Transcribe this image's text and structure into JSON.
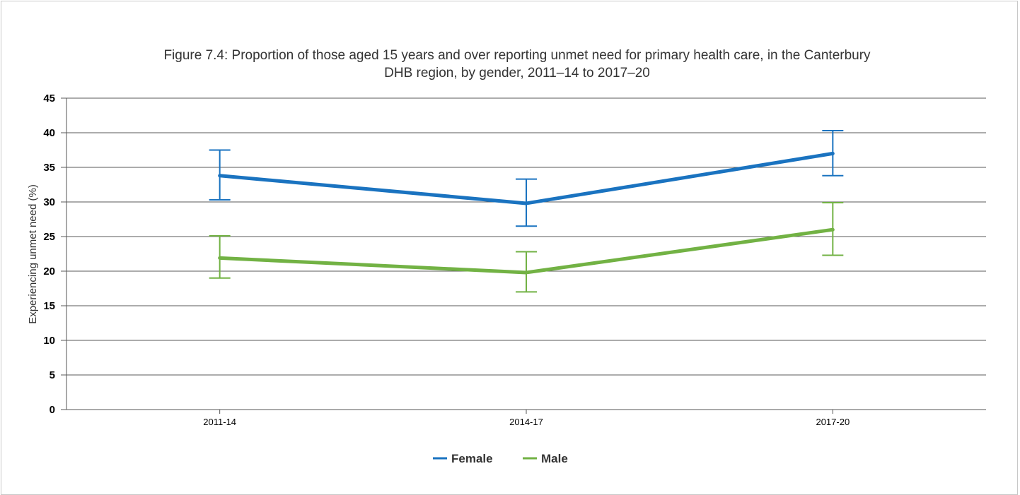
{
  "chart_data": {
    "type": "line",
    "title_lines": [
      "Figure 7.4: Proportion of those aged 15 years and over reporting unmet need for primary health care, in the Canterbury",
      "DHB region, by gender, 2011–14 to 2017–20"
    ],
    "xlabel": "",
    "ylabel": "Experiencing unmet need (%)",
    "categories": [
      "2011-14",
      "2014-17",
      "2017-20"
    ],
    "ylim": [
      0,
      45
    ],
    "yticks": [
      "0",
      "5",
      "10",
      "15",
      "20",
      "25",
      "30",
      "35",
      "40",
      "45"
    ],
    "grid": true,
    "legend_position": "bottom-center",
    "series": [
      {
        "name": "Female",
        "color": "#1a73c0",
        "values": [
          33.8,
          29.8,
          37.0
        ],
        "error_low": [
          30.3,
          26.5,
          33.8
        ],
        "error_high": [
          37.5,
          33.3,
          40.3
        ]
      },
      {
        "name": "Male",
        "color": "#72b244",
        "values": [
          21.9,
          19.8,
          26.0
        ],
        "error_low": [
          19.0,
          17.0,
          22.3
        ],
        "error_high": [
          25.1,
          22.8,
          29.9
        ]
      }
    ]
  }
}
